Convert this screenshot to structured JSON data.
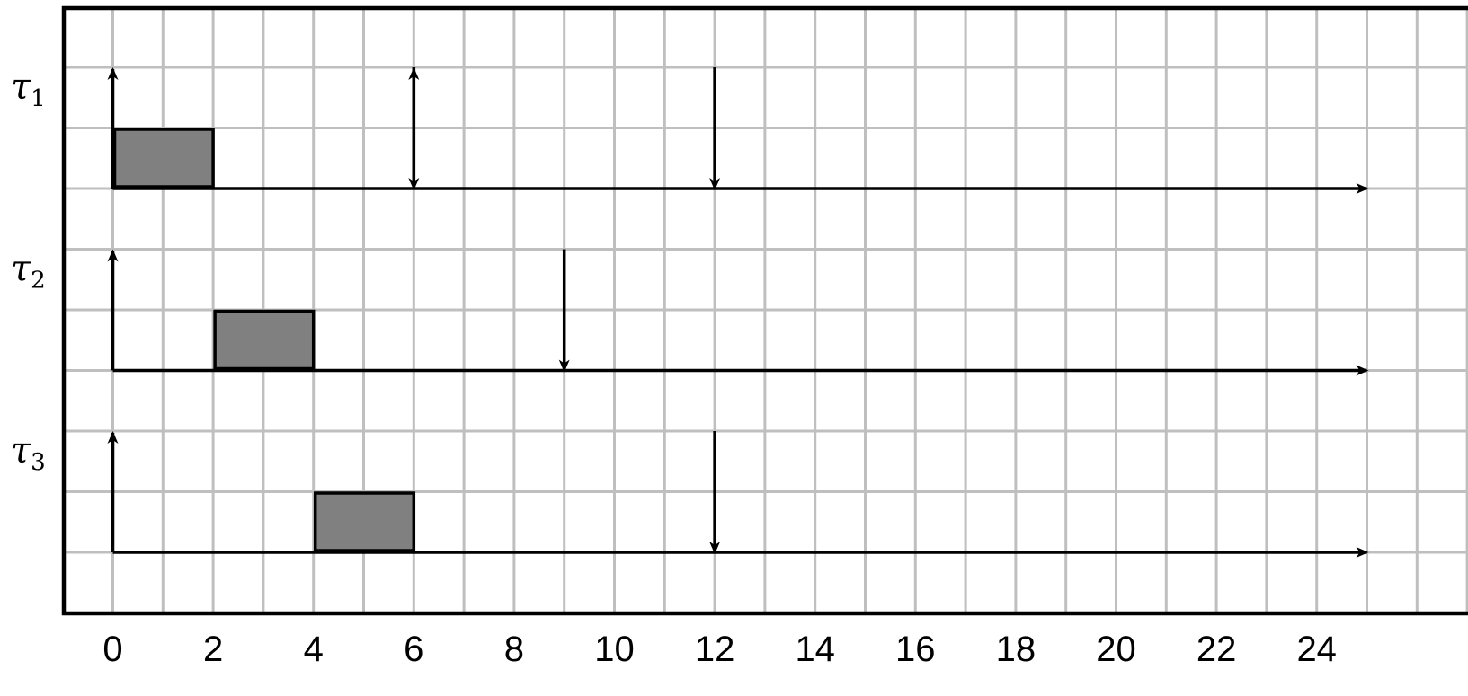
{
  "chart_data": {
    "type": "gantt",
    "x_ticks": [
      "0",
      "2",
      "4",
      "6",
      "8",
      "10",
      "12",
      "14",
      "16",
      "18",
      "20",
      "22",
      "24"
    ],
    "x_range": [
      0,
      25
    ],
    "grid": true,
    "tasks": [
      {
        "symbol": "τ",
        "subscript": "1",
        "release": 0,
        "deadlines": [
          6,
          12
        ],
        "executions": [
          [
            0,
            2
          ]
        ],
        "release_arrows": [
          0,
          6
        ]
      },
      {
        "symbol": "τ",
        "subscript": "2",
        "release": 0,
        "deadlines": [
          9
        ],
        "executions": [
          [
            2,
            4
          ]
        ],
        "release_arrows": [
          0
        ]
      },
      {
        "symbol": "τ",
        "subscript": "3",
        "release": 0,
        "deadlines": [
          12
        ],
        "executions": [
          [
            4,
            6
          ]
        ],
        "release_arrows": [
          0
        ]
      }
    ],
    "colors": {
      "grid": "#bfbfbf",
      "execution": "#808080",
      "axis": "#000000"
    }
  }
}
